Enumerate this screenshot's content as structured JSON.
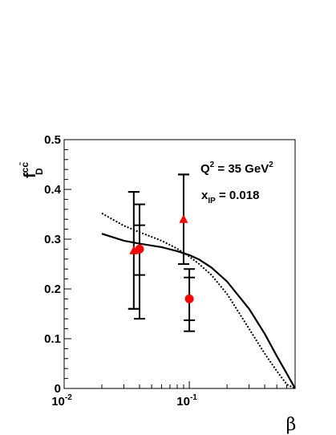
{
  "chart_data": {
    "type": "scatter",
    "xscale": "log",
    "xlim": [
      0.01,
      0.7
    ],
    "ylim": [
      0,
      0.5
    ],
    "x_ticks": [
      {
        "base": "10",
        "exp": "-2",
        "value": 0.01
      },
      {
        "base": "10",
        "exp": "-1",
        "value": 0.1
      }
    ],
    "y_ticks": [
      "0",
      "0.1",
      "0.2",
      "0.3",
      "0.4",
      "0.5"
    ],
    "xlabel": "β",
    "ylabel": {
      "main": "f",
      "sup": "cc̄",
      "sub": "D"
    },
    "annotations": {
      "q2": {
        "prefix": "Q",
        "sup1": "2",
        "mid": " = 35 GeV",
        "sup2": "2"
      },
      "xip": {
        "prefix": "x",
        "sub": "IP",
        "suffix": " = 0.018"
      }
    },
    "series": [
      {
        "marker": "triangle",
        "color": "#ff0000",
        "points": [
          {
            "x": 0.036,
            "y": 0.277,
            "err_in": [
              0.16,
              0.395
            ],
            "err_tot": [
              0.16,
              0.395
            ]
          },
          {
            "x": 0.09,
            "y": 0.34,
            "err_in": [
              0.25,
              0.43
            ],
            "err_tot": [
              0.25,
              0.43
            ]
          }
        ]
      },
      {
        "marker": "circle",
        "color": "#ff0000",
        "points": [
          {
            "x": 0.04,
            "y": 0.28,
            "err_in": [
              0.228,
              0.328
            ],
            "err_tot": [
              0.14,
              0.37
            ]
          },
          {
            "x": 0.1,
            "y": 0.18,
            "err_in": [
              0.137,
              0.223
            ],
            "err_tot": [
              0.115,
              0.24
            ]
          }
        ]
      }
    ],
    "curves": [
      {
        "style": "solid",
        "points": [
          [
            0.02,
            0.311
          ],
          [
            0.03,
            0.297
          ],
          [
            0.04,
            0.291
          ],
          [
            0.06,
            0.284
          ],
          [
            0.08,
            0.276
          ],
          [
            0.1,
            0.268
          ],
          [
            0.12,
            0.259
          ],
          [
            0.15,
            0.243
          ],
          [
            0.2,
            0.215
          ],
          [
            0.3,
            0.16
          ],
          [
            0.4,
            0.11
          ],
          [
            0.5,
            0.065
          ],
          [
            0.6,
            0.03
          ],
          [
            0.7,
            0.0
          ]
        ]
      },
      {
        "style": "dotted",
        "points": [
          [
            0.02,
            0.352
          ],
          [
            0.03,
            0.327
          ],
          [
            0.04,
            0.314
          ],
          [
            0.06,
            0.297
          ],
          [
            0.08,
            0.281
          ],
          [
            0.1,
            0.265
          ],
          [
            0.12,
            0.25
          ],
          [
            0.15,
            0.228
          ],
          [
            0.2,
            0.19
          ],
          [
            0.3,
            0.12
          ],
          [
            0.4,
            0.07
          ],
          [
            0.5,
            0.035
          ],
          [
            0.6,
            0.008
          ],
          [
            0.7,
            0.0
          ]
        ]
      }
    ]
  }
}
